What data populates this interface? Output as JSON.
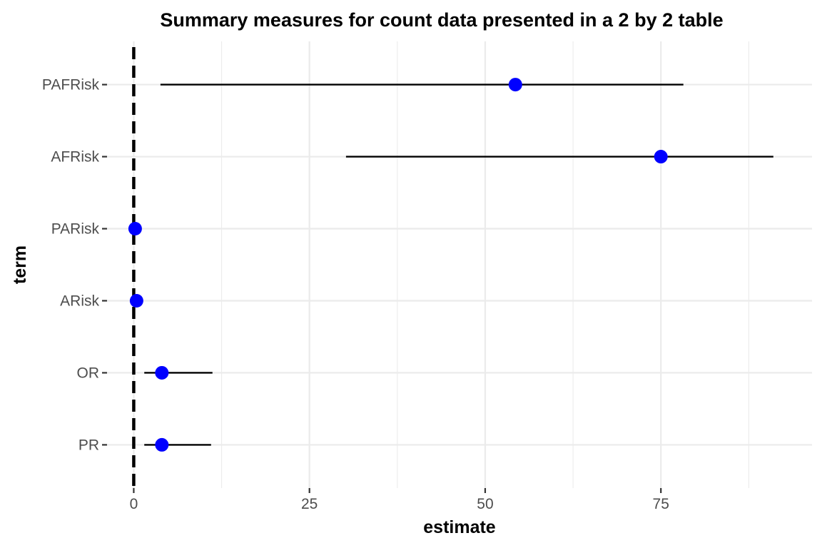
{
  "chart_data": {
    "type": "scatter",
    "title": "Summary measures for count data presented in a 2 by 2 table",
    "xlabel": "estimate",
    "ylabel": "term",
    "xlim": [
      -3.8,
      96.5
    ],
    "x_ticks": [
      0,
      25,
      50,
      75
    ],
    "x_minor_ticks": [
      12.5,
      37.5,
      62.5,
      87.5
    ],
    "reference_line": {
      "x": 0,
      "style": "dashed"
    },
    "grid": true,
    "legend": "none",
    "point_color": "#0000ff",
    "interval_color": "#000000",
    "categories": [
      "PAFRisk",
      "AFRisk",
      "PARisk",
      "ARisk",
      "OR",
      "PR"
    ],
    "points": [
      {
        "term": "PAFRisk",
        "estimate": 54.3,
        "low": 3.8,
        "high": 78.2
      },
      {
        "term": "AFRisk",
        "estimate": 75.0,
        "low": 30.2,
        "high": 91.0
      },
      {
        "term": "PARisk",
        "estimate": 0.2,
        "low": 0.05,
        "high": 0.4
      },
      {
        "term": "ARisk",
        "estimate": 0.4,
        "low": 0.1,
        "high": 0.8
      },
      {
        "term": "OR",
        "estimate": 4.0,
        "low": 1.5,
        "high": 11.2
      },
      {
        "term": "PR",
        "estimate": 4.0,
        "low": 1.5,
        "high": 11.0
      }
    ]
  }
}
